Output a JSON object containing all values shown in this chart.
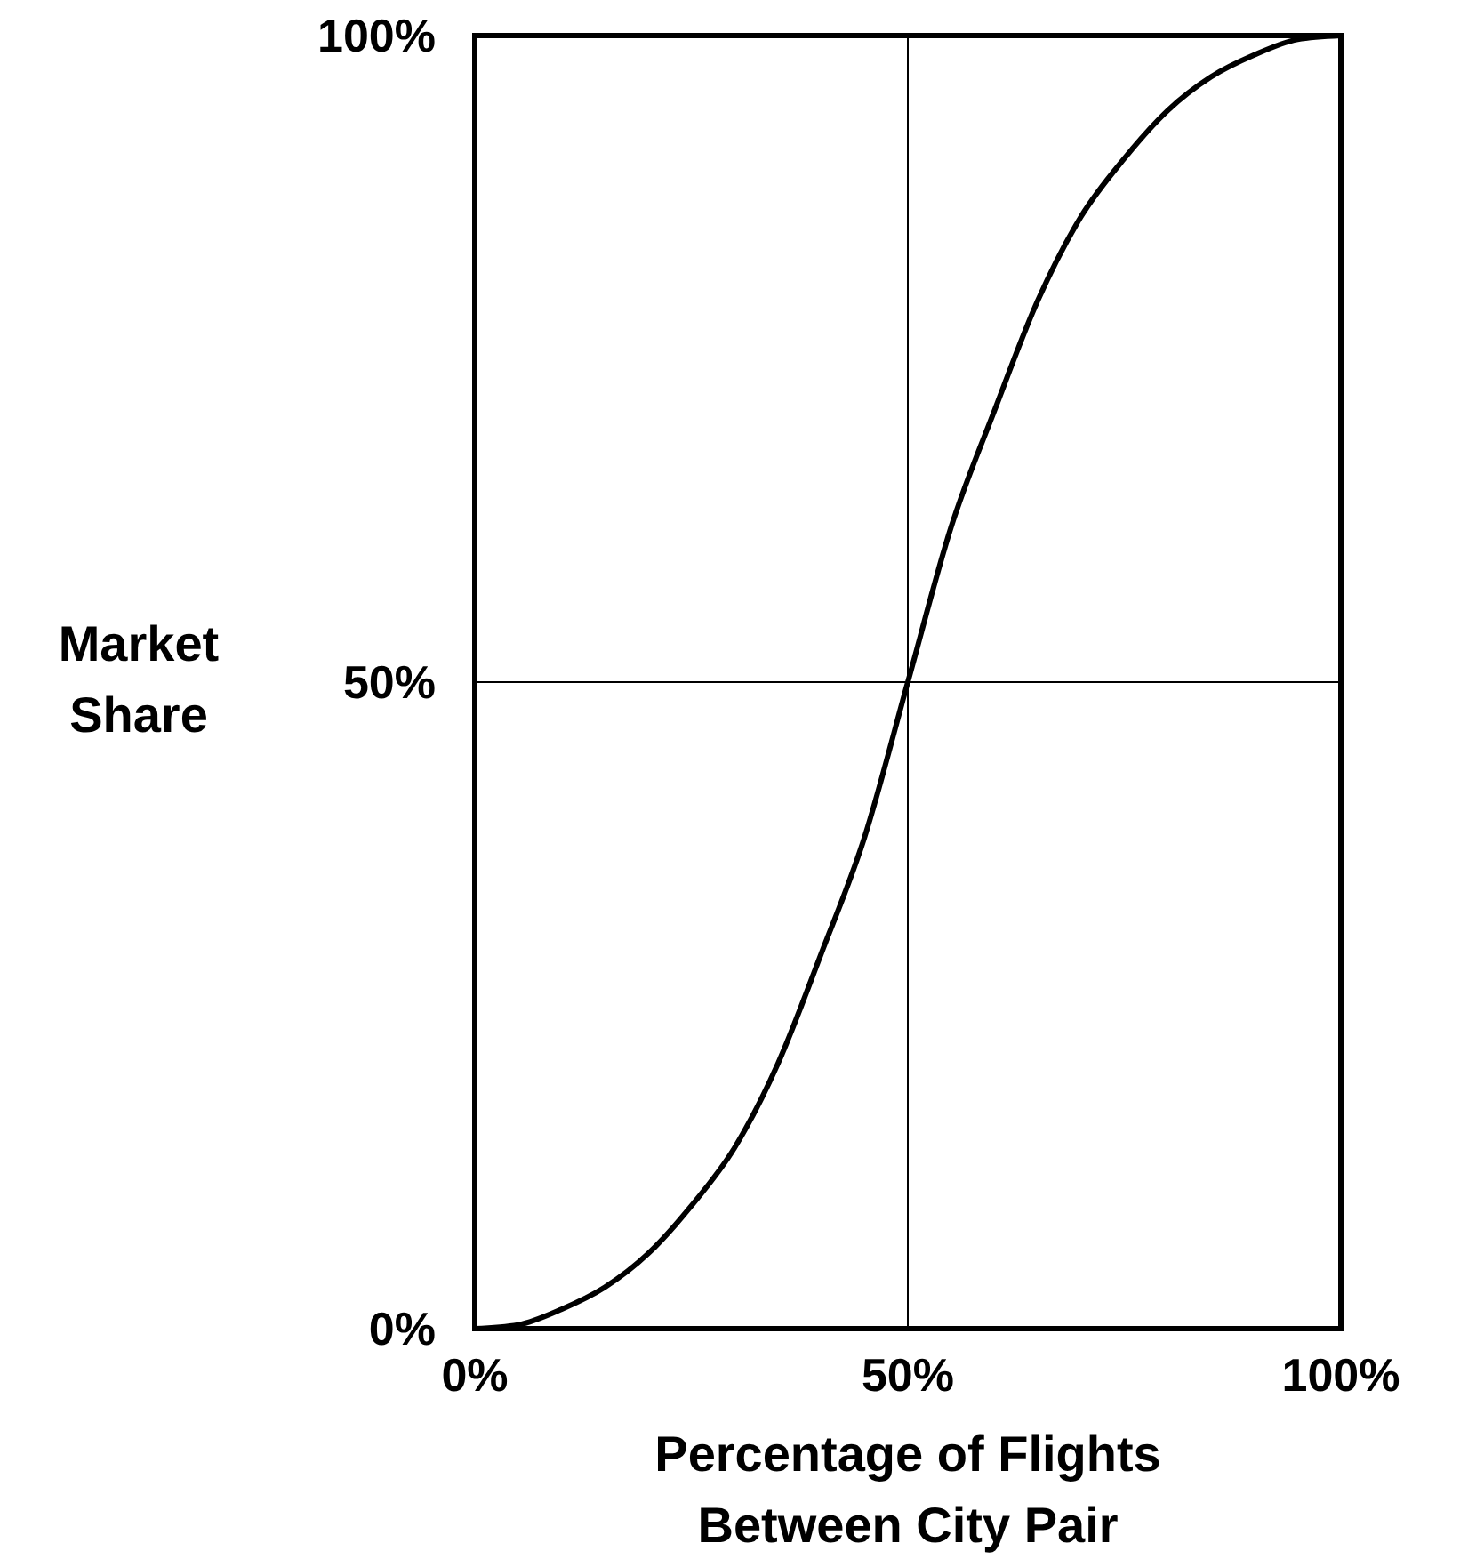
{
  "chart_data": {
    "type": "line",
    "xlabel": "Percentage of Flights Between City Pair",
    "ylabel": "Market Share",
    "x": [
      0,
      5,
      10,
      15,
      20,
      25,
      30,
      35,
      40,
      45,
      50,
      55,
      60,
      65,
      70,
      75,
      80,
      85,
      90,
      95,
      100
    ],
    "series": [
      {
        "color": "#000000",
        "values": [
          0,
          0.3,
          1.5,
          3.2,
          5.8,
          9.5,
          14,
          20.5,
          29,
          38,
          50,
          62,
          71,
          79.5,
          86,
          90.5,
          94.2,
          96.8,
          98.5,
          99.7,
          100
        ]
      }
    ],
    "xlim": [
      0,
      100
    ],
    "ylim": [
      0,
      100
    ],
    "xticks": [
      {
        "value": 0,
        "label": "0%"
      },
      {
        "value": 50,
        "label": "50%"
      },
      {
        "value": 100,
        "label": "100%"
      }
    ],
    "yticks": [
      {
        "value": 0,
        "label": "0%"
      },
      {
        "value": 50,
        "label": "50%"
      },
      {
        "value": 100,
        "label": "100%"
      }
    ],
    "grid": true,
    "marker": "none",
    "line_style": "solid"
  }
}
